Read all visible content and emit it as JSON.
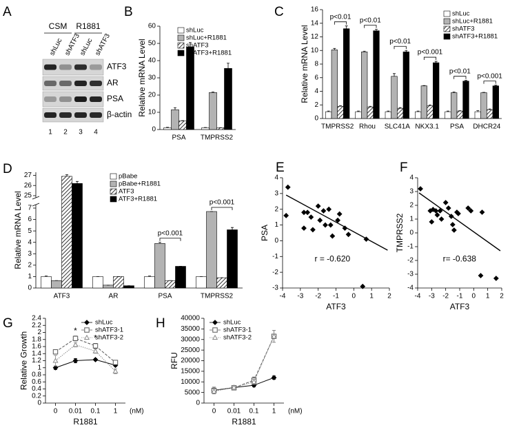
{
  "blot": {
    "panel": "A",
    "groups": [
      "CSM",
      "R1881"
    ],
    "lanes": [
      "shLuc",
      "shATF3",
      "shLuc",
      "shATF3"
    ],
    "rows": [
      "ATF3",
      "AR",
      "PSA",
      "β-actin"
    ],
    "lane_numbers": [
      "1",
      "2",
      "3",
      "4"
    ]
  },
  "chart_data": [
    {
      "type": "bar",
      "panel": "B",
      "ylabel": "Relative mRNA Level",
      "categories": [
        "PSA",
        "TMPRSS2"
      ],
      "ylim": [
        0,
        60
      ],
      "yticks": [
        0,
        10,
        20,
        30,
        40,
        50,
        60
      ],
      "legend": "upper right",
      "series": [
        {
          "name": "shLuc",
          "color": "#ffffff",
          "values": [
            1,
            1
          ],
          "errors": [
            0.3,
            0.2
          ]
        },
        {
          "name": "shLuc+R1881",
          "color": "#b3b3b3",
          "values": [
            11.5,
            21.5
          ],
          "errors": [
            1.2,
            0.3
          ]
        },
        {
          "name": "shATF3",
          "color": "#555555",
          "hatch": true,
          "values": [
            5,
            1
          ],
          "errors": [
            0.2,
            0.1
          ]
        },
        {
          "name": "shATF3+R1881",
          "color": "#000000",
          "values": [
            48,
            35.5
          ],
          "errors": [
            2.5,
            3
          ]
        }
      ]
    },
    {
      "type": "bar",
      "panel": "C",
      "ylabel": "Relative mRNA Level",
      "categories": [
        "TMPRSS2",
        "Rhou",
        "SLC41A",
        "NKX3.1",
        "PSA",
        "DHCR24"
      ],
      "ylim": [
        0,
        16
      ],
      "yticks": [
        0,
        2,
        4,
        6,
        8,
        10,
        12,
        14,
        16
      ],
      "legend": "upper right",
      "annotations": [
        "p<0.01",
        "p<0.01",
        "p<0.01",
        "p<0.001",
        "p<0.01",
        "p<0.001"
      ],
      "series": [
        {
          "name": "shLuc",
          "color": "#ffffff",
          "values": [
            1,
            1,
            1,
            1,
            1,
            1
          ],
          "errors": [
            0.1,
            0.1,
            0.1,
            0.1,
            0.1,
            0.15
          ]
        },
        {
          "name": "shLuc+R1881",
          "color": "#b3b3b3",
          "values": [
            10.1,
            9.8,
            6.2,
            4.8,
            3.8,
            3.8
          ],
          "errors": [
            0.2,
            0.1,
            0.4,
            0.05,
            0.1,
            0.05
          ]
        },
        {
          "name": "shATF3",
          "color": "#555555",
          "hatch": true,
          "values": [
            1.8,
            1.7,
            1.5,
            1.9,
            1.1,
            1.3
          ],
          "errors": [
            0.1,
            0.1,
            0.1,
            0.1,
            0.05,
            0.1
          ]
        },
        {
          "name": "shATF3+R1881",
          "color": "#000000",
          "values": [
            13.2,
            12.9,
            9.8,
            8.2,
            5.5,
            4.8
          ],
          "errors": [
            0.4,
            0.2,
            0.2,
            0.2,
            0.1,
            0.1
          ]
        }
      ]
    },
    {
      "type": "bar",
      "panel": "D",
      "ylabel": "Relative mRNA Level",
      "categories": [
        "ATF3",
        "AR",
        "PSA",
        "TMPRSS2"
      ],
      "ylim": [
        0,
        27.3
      ],
      "ybreak": [
        7.3,
        24.8
      ],
      "yticks": [
        0,
        1,
        2,
        3,
        4,
        5,
        6,
        7,
        25,
        26,
        27
      ],
      "legend": "upper center",
      "annotations": [
        null,
        null,
        "p<0.001",
        "p<0.001"
      ],
      "series": [
        {
          "name": "pBabe",
          "color": "#ffffff",
          "values": [
            1,
            1,
            1,
            1
          ],
          "errors": [
            0.05,
            0,
            0.05,
            0
          ]
        },
        {
          "name": "pBabe+R1881",
          "color": "#b3b3b3",
          "values": [
            0.65,
            0.25,
            3.9,
            6.7
          ],
          "errors": [
            0,
            0,
            0.1,
            0
          ]
        },
        {
          "name": "ATF3",
          "color": "#555555",
          "hatch": true,
          "values": [
            26.9,
            1.0,
            0.65,
            0.9
          ],
          "errors": [
            0.15,
            0,
            0,
            0
          ]
        },
        {
          "name": "ATF3+R1881",
          "color": "#000000",
          "values": [
            26.2,
            0.2,
            1.9,
            5.1
          ],
          "errors": [
            0.2,
            0,
            0,
            0.2
          ]
        }
      ]
    },
    {
      "type": "scatter",
      "panel": "E",
      "xlabel": "ATF3",
      "ylabel": "PSA",
      "xlim": [
        -4,
        2
      ],
      "xticks": [
        -4,
        -3,
        -2,
        -1,
        0,
        1,
        2
      ],
      "ylim": [
        -3,
        4
      ],
      "yticks": [
        -3,
        -2,
        -1,
        0,
        1,
        2,
        3,
        4
      ],
      "annotation": "r = -0.620",
      "x": [
        -3.7,
        -3.8,
        -2.8,
        -2.6,
        -2.8,
        -2.4,
        -2.3,
        -2.0,
        -1.9,
        -1.7,
        -1.6,
        -1.4,
        -1.3,
        -1.2,
        -0.9,
        -0.8,
        -0.5,
        -0.3,
        0.5,
        0.7
      ],
      "y": [
        3.4,
        1.6,
        1.8,
        1.8,
        0.8,
        1.5,
        0.7,
        2.2,
        1.3,
        1.9,
        1.0,
        2.0,
        1.0,
        0.3,
        1.3,
        1.7,
        0.8,
        0.4,
        -2.9,
        0.1
      ],
      "fit_x": [
        -3.8,
        1.9
      ],
      "fit_y": [
        2.9,
        -0.6
      ]
    },
    {
      "type": "scatter",
      "panel": "F",
      "xlabel": "ATF3",
      "ylabel": "TMPRSS2",
      "xlim": [
        -4,
        2
      ],
      "xticks": [
        -4,
        -3,
        -2,
        -1,
        0,
        1,
        2
      ],
      "ylim": [
        -4,
        4
      ],
      "yticks": [
        -4,
        -3,
        -2,
        -1,
        0,
        1,
        2,
        3,
        4
      ],
      "annotation": "r= -0.638",
      "x": [
        -3.8,
        -3.1,
        -3.0,
        -2.9,
        -2.7,
        -2.6,
        -2.4,
        -2.3,
        -2.0,
        -1.8,
        -1.6,
        -1.5,
        -1.4,
        -1.2,
        -1.1,
        -0.4,
        -0.2,
        0.6,
        0.5,
        1.6
      ],
      "y": [
        3.2,
        1.6,
        0.8,
        1.7,
        1.6,
        1.3,
        1.6,
        1.0,
        2.2,
        1.8,
        1.2,
        0.6,
        0.2,
        1.5,
        1.4,
        1.8,
        1.6,
        1.5,
        -3.1,
        -3.3
      ],
      "fit_x": [
        -3.9,
        1.9
      ],
      "fit_y": [
        2.9,
        -1.3
      ]
    },
    {
      "type": "line",
      "panel": "G",
      "xlabel": "R1881",
      "x_unit": "(nM)",
      "ylabel": "Relative Growth",
      "categories": [
        "0",
        "0.01",
        "0.1",
        "1"
      ],
      "ylim": [
        0,
        2.4
      ],
      "yticks": [
        0,
        0.2,
        0.4,
        0.6,
        0.8,
        1,
        1.2,
        1.4,
        1.6,
        1.8,
        2,
        2.2,
        2.4
      ],
      "legend": "upper right",
      "annotations": [
        null,
        "*",
        "*",
        null
      ],
      "series": [
        {
          "name": "shLuc",
          "color": "#000000",
          "dash": "solid",
          "marker": "diamond",
          "values": [
            1.0,
            1.2,
            1.23,
            1.07
          ],
          "errors": [
            0.05,
            0.06,
            0.03,
            0.03
          ]
        },
        {
          "name": "shATF3-1",
          "color": "#555555",
          "dash": "dashed",
          "marker": "square",
          "values": [
            1.45,
            1.83,
            1.62,
            1.15
          ],
          "errors": [
            0.06,
            0.07,
            0.07,
            0.04
          ]
        },
        {
          "name": "shATF3-2",
          "color": "#888888",
          "dash": "dotted",
          "marker": "triangle",
          "values": [
            1.2,
            1.65,
            1.47,
            0.9
          ],
          "errors": [
            0.15,
            0.06,
            0.06,
            0.07
          ]
        }
      ]
    },
    {
      "type": "line",
      "panel": "H",
      "xlabel": "R1881",
      "x_unit": "(nM)",
      "ylabel": "RFU",
      "categories": [
        "0",
        "0.01",
        "0.1",
        "1"
      ],
      "ylim": [
        0,
        40000
      ],
      "yticks": [
        0,
        5000,
        10000,
        15000,
        20000,
        25000,
        30000,
        35000,
        40000
      ],
      "legend": "upper left",
      "series": [
        {
          "name": "shLuc",
          "color": "#000000",
          "dash": "solid",
          "marker": "diamond",
          "values": [
            6000,
            7300,
            8400,
            12000
          ],
          "errors": [
            800,
            300,
            800,
            800
          ]
        },
        {
          "name": "shATF3-1",
          "color": "#555555",
          "dash": "dashed",
          "marker": "square",
          "values": [
            6000,
            7200,
            10800,
            31500
          ],
          "errors": [
            1500,
            400,
            1500,
            2800
          ]
        },
        {
          "name": "shATF3-2",
          "color": "#888888",
          "dash": "dotted",
          "marker": "triangle",
          "values": [
            5500,
            7400,
            10000,
            31500
          ],
          "errors": [
            1200,
            300,
            1200,
            2800
          ]
        }
      ]
    }
  ]
}
